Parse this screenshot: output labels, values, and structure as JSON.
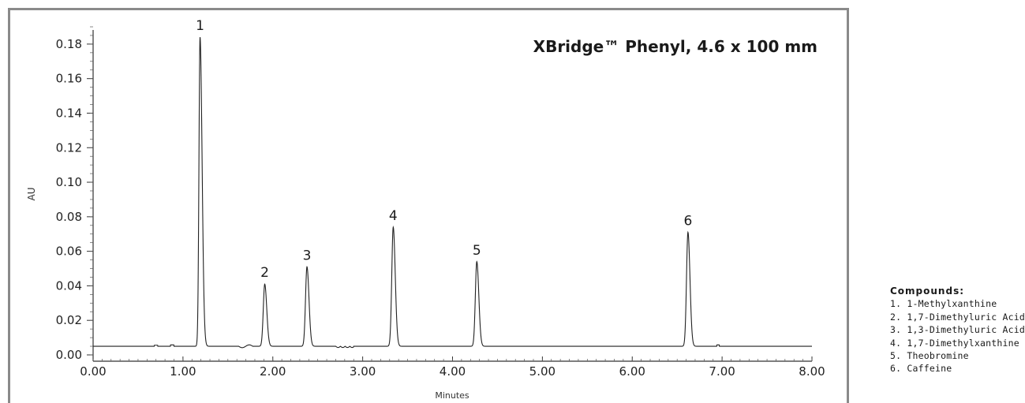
{
  "chart_data": {
    "type": "line",
    "title": "XBridge™ Phenyl, 4.6 x 100 mm",
    "xlabel": "Minutes",
    "ylabel": "AU",
    "xlim": [
      0,
      8
    ],
    "ylim": [
      0,
      0.19
    ],
    "x_ticks": [
      "0.00",
      "1.00",
      "2.00",
      "3.00",
      "4.00",
      "5.00",
      "6.00",
      "7.00",
      "8.00"
    ],
    "y_ticks": [
      "0.00",
      "0.02",
      "0.04",
      "0.06",
      "0.08",
      "0.10",
      "0.12",
      "0.14",
      "0.16",
      "0.18"
    ],
    "baseline": 0.005,
    "peaks": [
      {
        "label": "1",
        "x": 1.19,
        "y": 0.184
      },
      {
        "label": "2",
        "x": 1.91,
        "y": 0.041
      },
      {
        "label": "3",
        "x": 2.38,
        "y": 0.051
      },
      {
        "label": "4",
        "x": 3.34,
        "y": 0.074
      },
      {
        "label": "5",
        "x": 4.27,
        "y": 0.054
      },
      {
        "label": "6",
        "x": 6.62,
        "y": 0.071
      }
    ],
    "legend": {
      "title": "Compounds:",
      "items": [
        "1. 1-Methylxanthine",
        "2. 1,7-Dimethyluric Acid",
        "3. 1,3-Dimethyluric Acid",
        "4. 1,7-Dimethylxanthine",
        "5. Theobromine",
        "6. Caffeine"
      ]
    }
  }
}
